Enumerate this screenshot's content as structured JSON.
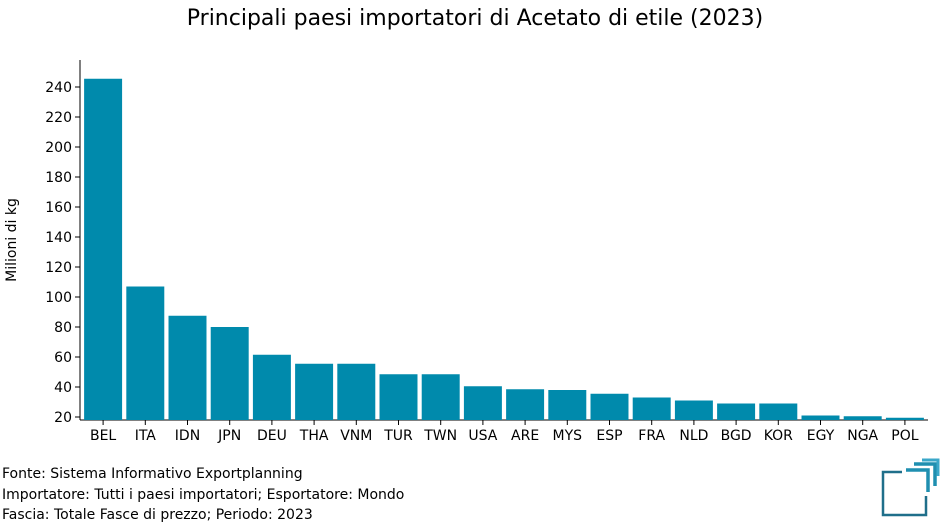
{
  "chart_data": {
    "type": "bar",
    "title": "Principali paesi importatori di Acetato di etile (2023)",
    "ylabel": "Milioni di kg",
    "xlabel": "",
    "categories": [
      "BEL",
      "ITA",
      "IDN",
      "JPN",
      "DEU",
      "THA",
      "VNM",
      "TUR",
      "TWN",
      "USA",
      "ARE",
      "MYS",
      "ESP",
      "FRA",
      "NLD",
      "BGD",
      "KOR",
      "EGY",
      "NGA",
      "POL"
    ],
    "values": [
      245.5,
      107,
      87.5,
      80,
      61.5,
      55.5,
      55.5,
      48.5,
      48.5,
      40.5,
      38.5,
      38,
      35.5,
      33,
      31,
      29,
      29,
      21,
      20.5,
      19.5
    ],
    "ylim": [
      18,
      258
    ],
    "yticks": [
      20,
      40,
      60,
      80,
      100,
      120,
      140,
      160,
      180,
      200,
      220,
      240
    ],
    "bar_color": "#008aac",
    "grid": false
  },
  "footer": {
    "source": "Fonte: Sistema Informativo Exportplanning",
    "importer": "Importatore: Tutti i paesi importatori; Esportatore: Mondo",
    "range": "Fascia: Totale Fasce di prezzo; Periodo: 2023"
  },
  "logo": {
    "icon": "exportplanning-logo-icon",
    "color": "#1f8fb0"
  }
}
